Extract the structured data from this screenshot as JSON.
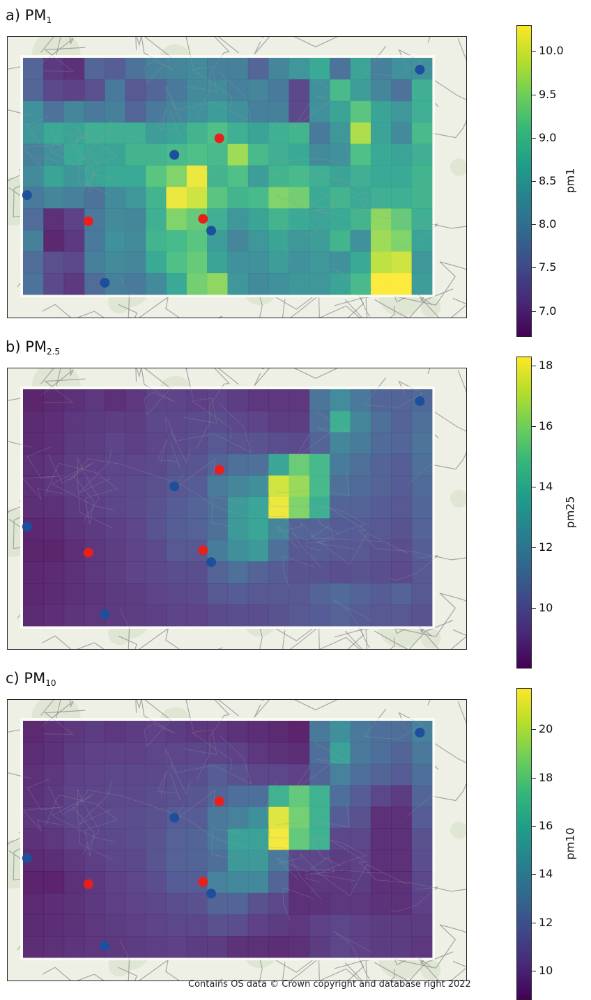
{
  "panels": [
    {
      "id": "pm1",
      "label_main": "a) PM",
      "label_sub": "1",
      "colorbar_label": "pm1",
      "vmin": 6.7,
      "vmax": 10.3,
      "ticks": [
        "7.0",
        "7.5",
        "8.0",
        "8.5",
        "9.0",
        "9.5",
        "10.0"
      ],
      "grid": [
        [
          7.6,
          7.0,
          6.9,
          7.6,
          7.5,
          7.8,
          8.0,
          8.1,
          8.2,
          8.0,
          8.0,
          7.6,
          8.1,
          8.4,
          8.7,
          7.8,
          8.6,
          8.0,
          8.3,
          8.3
        ],
        [
          7.6,
          7.2,
          7.1,
          7.3,
          7.9,
          7.4,
          7.6,
          7.9,
          8.2,
          8.2,
          8.0,
          8.1,
          7.9,
          7.2,
          8.3,
          9.0,
          8.5,
          8.1,
          7.8,
          8.8
        ],
        [
          8.3,
          7.8,
          8.1,
          7.9,
          8.0,
          7.6,
          7.9,
          8.1,
          8.3,
          8.5,
          8.3,
          8.0,
          8.0,
          7.2,
          8.3,
          8.6,
          9.2,
          8.6,
          8.4,
          8.8
        ],
        [
          8.4,
          8.7,
          8.6,
          8.8,
          8.8,
          8.8,
          8.5,
          8.6,
          8.9,
          9.1,
          8.8,
          8.6,
          8.8,
          8.9,
          7.9,
          8.4,
          9.8,
          8.6,
          8.2,
          9.0
        ],
        [
          8.0,
          8.3,
          8.7,
          8.6,
          8.6,
          8.9,
          8.9,
          9.0,
          9.1,
          9.0,
          9.7,
          9.0,
          8.8,
          8.7,
          8.2,
          8.3,
          9.1,
          8.7,
          8.6,
          8.8
        ],
        [
          8.2,
          8.6,
          8.4,
          8.6,
          8.7,
          8.7,
          9.2,
          9.5,
          10.2,
          8.9,
          9.1,
          8.5,
          8.9,
          9.0,
          8.8,
          8.6,
          8.8,
          8.7,
          8.7,
          8.9
        ],
        [
          7.9,
          8.1,
          8.0,
          7.8,
          8.2,
          8.4,
          8.9,
          10.2,
          10.0,
          9.2,
          8.9,
          9.0,
          9.5,
          9.4,
          8.7,
          8.9,
          8.7,
          8.8,
          8.8,
          8.9
        ],
        [
          7.7,
          6.9,
          7.1,
          7.9,
          8.2,
          8.1,
          8.8,
          9.5,
          9.3,
          8.8,
          8.4,
          8.6,
          8.9,
          8.7,
          8.6,
          8.7,
          8.9,
          9.6,
          9.3,
          8.8
        ],
        [
          8.0,
          6.8,
          7.0,
          7.9,
          8.3,
          8.2,
          8.9,
          9.0,
          9.2,
          8.5,
          8.1,
          8.4,
          8.6,
          8.4,
          8.5,
          8.9,
          8.3,
          9.7,
          9.5,
          8.6
        ],
        [
          7.7,
          7.3,
          7.2,
          8.0,
          8.2,
          8.1,
          8.7,
          9.1,
          9.3,
          8.6,
          8.3,
          8.3,
          8.5,
          8.3,
          8.4,
          8.3,
          8.7,
          9.9,
          10.0,
          8.4
        ],
        [
          7.8,
          7.2,
          7.0,
          7.7,
          8.0,
          7.9,
          8.2,
          8.7,
          9.4,
          9.6,
          8.4,
          8.2,
          8.3,
          8.4,
          8.4,
          8.6,
          9.0,
          10.3,
          10.3,
          8.5
        ]
      ]
    },
    {
      "id": "pm25",
      "label_main": "b) PM",
      "label_sub": "2.5",
      "colorbar_label": "pm25",
      "vmin": 8.0,
      "vmax": 18.3,
      "ticks": [
        "10",
        "12",
        "14",
        "16",
        "18"
      ],
      "grid": [
        [
          8.2,
          8.4,
          8.6,
          8.8,
          8.6,
          8.8,
          9.2,
          9.2,
          9.1,
          9.2,
          9.0,
          8.8,
          8.8,
          8.8,
          11.2,
          12.3,
          11.4,
          10.6,
          10.5,
          10.7
        ],
        [
          8.4,
          8.5,
          8.8,
          8.9,
          9.0,
          9.0,
          9.4,
          9.4,
          9.5,
          9.6,
          9.4,
          9.2,
          9.0,
          9.0,
          11.0,
          14.0,
          12.0,
          11.0,
          10.5,
          11.0
        ],
        [
          8.4,
          8.6,
          8.9,
          9.0,
          9.2,
          9.1,
          9.3,
          9.5,
          9.6,
          10.0,
          9.8,
          9.8,
          9.6,
          9.5,
          10.5,
          12.0,
          11.5,
          10.8,
          10.6,
          11.2
        ],
        [
          8.6,
          8.7,
          9.0,
          9.1,
          9.3,
          9.3,
          9.5,
          9.8,
          9.9,
          10.5,
          11.0,
          11.0,
          13.5,
          15.5,
          14.5,
          11.5,
          11.0,
          10.5,
          10.3,
          11.0
        ],
        [
          8.6,
          8.8,
          9.1,
          9.2,
          9.4,
          9.5,
          9.7,
          10.0,
          10.2,
          11.5,
          12.0,
          12.5,
          17.5,
          16.5,
          14.5,
          11.0,
          10.8,
          10.5,
          10.2,
          10.8
        ],
        [
          8.5,
          8.6,
          8.9,
          9.1,
          9.3,
          9.5,
          9.8,
          10.2,
          10.5,
          11.0,
          13.0,
          13.5,
          18.0,
          16.0,
          14.0,
          10.5,
          10.5,
          10.2,
          10.0,
          10.6
        ],
        [
          8.3,
          8.4,
          8.7,
          8.9,
          9.1,
          9.3,
          9.8,
          10.3,
          10.4,
          11.0,
          13.0,
          13.5,
          12.0,
          10.5,
          10.5,
          10.2,
          10.2,
          10.0,
          9.8,
          10.5
        ],
        [
          8.2,
          8.2,
          8.5,
          8.8,
          9.0,
          9.2,
          9.5,
          10.0,
          10.0,
          11.5,
          12.5,
          13.0,
          11.0,
          10.0,
          10.2,
          10.0,
          10.0,
          9.8,
          9.6,
          10.3
        ],
        [
          8.3,
          8.4,
          8.6,
          8.8,
          9.0,
          9.2,
          9.4,
          9.6,
          9.6,
          10.5,
          11.0,
          10.5,
          10.2,
          9.8,
          9.8,
          9.6,
          9.8,
          9.6,
          9.5,
          10.0
        ],
        [
          8.3,
          8.4,
          8.6,
          8.7,
          8.9,
          9.0,
          9.2,
          9.4,
          9.5,
          10.0,
          10.2,
          10.0,
          10.0,
          10.0,
          10.5,
          10.8,
          10.5,
          10.2,
          10.5,
          10.0
        ],
        [
          8.4,
          8.5,
          8.7,
          8.8,
          8.9,
          9.0,
          9.1,
          9.2,
          9.2,
          9.5,
          9.6,
          9.6,
          9.8,
          10.0,
          10.2,
          10.4,
          10.2,
          10.0,
          10.0,
          9.8
        ]
      ]
    },
    {
      "id": "pm10",
      "label_main": "c) PM",
      "label_sub": "10",
      "colorbar_label": "pm10",
      "vmin": 8.8,
      "vmax": 21.7,
      "ticks": [
        "10",
        "12",
        "14",
        "16",
        "18",
        "20"
      ],
      "grid": [
        [
          9.2,
          9.5,
          9.8,
          10.0,
          9.8,
          10.0,
          10.2,
          10.0,
          9.8,
          9.8,
          9.6,
          9.4,
          9.2,
          9.0,
          13.0,
          14.5,
          13.0,
          12.5,
          12.5,
          13.5
        ],
        [
          9.4,
          9.6,
          10.0,
          10.2,
          10.2,
          10.2,
          10.4,
          10.4,
          10.5,
          10.4,
          10.2,
          9.8,
          9.6,
          9.4,
          12.5,
          15.5,
          13.0,
          12.5,
          12.0,
          13.0
        ],
        [
          9.5,
          9.8,
          10.2,
          10.3,
          10.5,
          10.5,
          10.6,
          10.8,
          10.8,
          11.5,
          11.0,
          10.5,
          10.5,
          10.2,
          12.0,
          13.5,
          12.5,
          12.0,
          11.5,
          12.5
        ],
        [
          9.6,
          9.9,
          10.3,
          10.4,
          10.6,
          10.6,
          10.8,
          11.0,
          11.2,
          12.0,
          12.5,
          12.5,
          16.5,
          18.0,
          16.5,
          12.5,
          11.5,
          10.5,
          10.0,
          12.0
        ],
        [
          9.8,
          10.0,
          10.4,
          10.5,
          10.7,
          10.8,
          11.0,
          11.5,
          11.5,
          13.0,
          13.5,
          14.5,
          21.0,
          18.5,
          16.5,
          11.5,
          11.0,
          9.5,
          9.5,
          11.5
        ],
        [
          9.6,
          9.8,
          10.2,
          10.4,
          10.6,
          10.8,
          11.2,
          11.8,
          12.0,
          13.0,
          15.5,
          15.5,
          21.5,
          18.0,
          16.5,
          10.5,
          10.5,
          9.5,
          9.5,
          11.0
        ],
        [
          9.3,
          9.4,
          9.8,
          10.1,
          10.4,
          10.6,
          11.2,
          11.8,
          12.0,
          12.5,
          15.0,
          15.0,
          13.0,
          10.5,
          10.5,
          10.0,
          10.2,
          9.5,
          9.5,
          10.8
        ],
        [
          9.0,
          9.0,
          9.5,
          9.9,
          10.2,
          10.4,
          10.8,
          11.5,
          11.5,
          13.5,
          14.0,
          14.0,
          12.0,
          9.5,
          9.8,
          9.8,
          10.0,
          9.5,
          9.5,
          10.5
        ],
        [
          9.2,
          9.4,
          9.6,
          9.9,
          10.1,
          10.3,
          10.5,
          10.8,
          11.0,
          12.0,
          12.0,
          11.0,
          10.5,
          9.5,
          9.6,
          9.8,
          9.8,
          9.6,
          9.5,
          10.2
        ],
        [
          9.3,
          9.4,
          9.6,
          9.8,
          10.0,
          10.1,
          10.3,
          10.5,
          10.5,
          11.0,
          10.8,
          10.2,
          10.0,
          9.8,
          10.2,
          10.5,
          10.2,
          10.0,
          10.0,
          10.0
        ],
        [
          9.4,
          9.5,
          9.7,
          9.8,
          9.9,
          10.0,
          10.1,
          10.2,
          10.0,
          10.0,
          9.6,
          9.5,
          9.4,
          9.5,
          10.0,
          10.4,
          10.2,
          10.0,
          10.0,
          9.8
        ]
      ]
    }
  ],
  "markers": {
    "red": [
      [
        0.16,
        0.69
      ],
      [
        0.44,
        0.68
      ],
      [
        0.48,
        0.34
      ]
    ],
    "blue": [
      [
        0.01,
        0.58
      ],
      [
        0.2,
        0.95
      ],
      [
        0.37,
        0.41
      ],
      [
        0.46,
        0.73
      ],
      [
        0.97,
        0.05
      ]
    ],
    "red_color": "#e8201c",
    "blue_color": "#1d4f9c"
  },
  "colors": {
    "viridis": [
      "#440154",
      "#482878",
      "#3e4989",
      "#31688e",
      "#26828e",
      "#1f9e89",
      "#35b779",
      "#6ece58",
      "#b5de2b",
      "#fde725"
    ],
    "map_background": "#eef0e6",
    "road": "#8c8c8c"
  },
  "footer": "Contains OS data © Crown copyright and database right 2022"
}
